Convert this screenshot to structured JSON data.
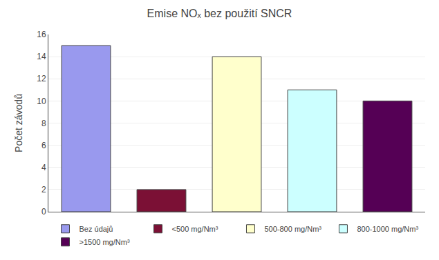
{
  "chart_data": {
    "type": "bar",
    "title": "Emise NOₓ bez použití SNCR",
    "ylabel": "Počet závodů",
    "categories": [
      "Bez údajů",
      "<500 mg/Nm³",
      "500-800 mg/Nm³",
      "800-1000 mg/Nm³",
      ">1500 mg/Nm³"
    ],
    "values": [
      15,
      2,
      14,
      11,
      10
    ],
    "colors": [
      "#9999ee",
      "#7b1035",
      "#ffffcc",
      "#ccffff",
      "#550055"
    ],
    "ylim": [
      0,
      16
    ],
    "yticks": [
      0,
      2,
      4,
      6,
      8,
      10,
      12,
      14,
      16
    ],
    "grid": true,
    "tick_labels": "y",
    "legend": "bottom"
  }
}
